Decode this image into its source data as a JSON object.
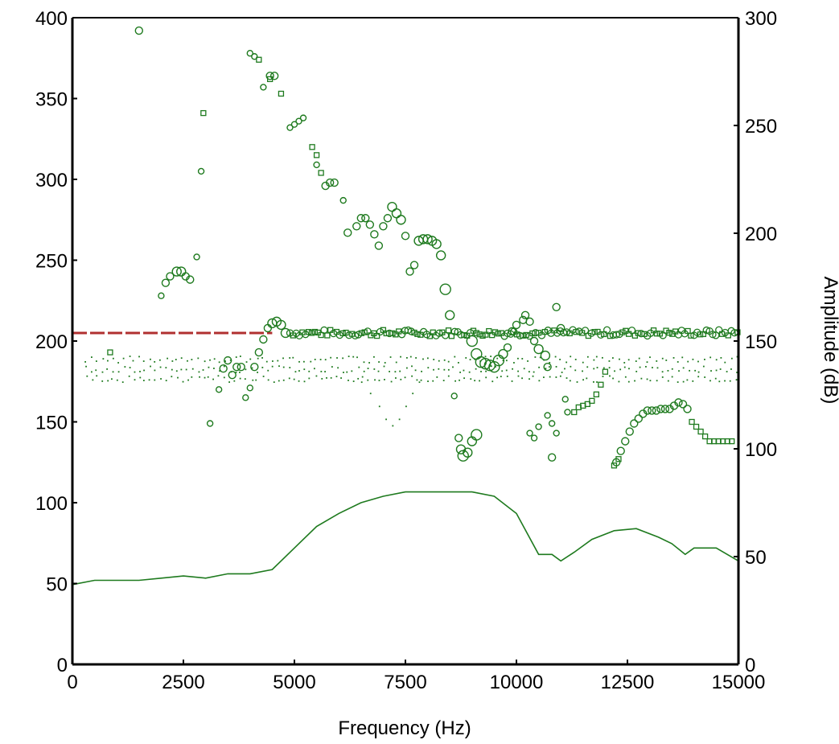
{
  "chart_data": {
    "type": "scatter",
    "xlabel": "Frequency (Hz)",
    "ylabel_right": "Amplitude (dB)",
    "xlim": [
      0,
      15000
    ],
    "ylim_left": [
      0,
      400
    ],
    "ylim_right": [
      0,
      300
    ],
    "x_ticks": [
      "0",
      "2500",
      "5000",
      "7500",
      "10000",
      "12500",
      "15000"
    ],
    "y_left_ticks": [
      "0",
      "50",
      "100",
      "150",
      "200",
      "250",
      "300",
      "350",
      "400"
    ],
    "y_right_ticks": [
      "0",
      "50",
      "100",
      "150",
      "200",
      "250",
      "300"
    ],
    "grid": false,
    "colors": {
      "series": "#1e7a1e",
      "reference": "#b03030",
      "axis": "#000000"
    },
    "series": [
      {
        "kind": "reference-line",
        "axis": "left",
        "x": [
          0,
          4500
        ],
        "y": [
          205,
          205
        ]
      },
      {
        "kind": "spectrum-line",
        "axis": "right",
        "x": [
          0,
          500,
          1000,
          1500,
          2000,
          2500,
          3000,
          3500,
          4000,
          4500,
          5000,
          5500,
          6000,
          6500,
          7000,
          7500,
          8000,
          8500,
          9000,
          9500,
          10000,
          10500,
          10800,
          11000,
          11300,
          11700,
          12200,
          12700,
          13200,
          13500,
          13800,
          14000,
          14500,
          15000
        ],
        "y": [
          37,
          39,
          39,
          39,
          40,
          41,
          40,
          42,
          42,
          44,
          54,
          64,
          70,
          75,
          78,
          80,
          80,
          80,
          80,
          78,
          70,
          51,
          51,
          48,
          52,
          58,
          62,
          63,
          59,
          56,
          51,
          54,
          54,
          48
        ]
      },
      {
        "kind": "scatter-circles",
        "axis": "left",
        "points": [
          [
            1500,
            392,
            3
          ],
          [
            2000,
            228,
            2
          ],
          [
            2100,
            236,
            3
          ],
          [
            2200,
            240,
            3
          ],
          [
            2350,
            243,
            4
          ],
          [
            2450,
            243,
            4
          ],
          [
            2550,
            240,
            3
          ],
          [
            2650,
            238,
            3
          ],
          [
            2800,
            252,
            2
          ],
          [
            2900,
            305,
            2
          ],
          [
            3100,
            149,
            2
          ],
          [
            3300,
            170,
            2
          ],
          [
            3400,
            183,
            3
          ],
          [
            3500,
            188,
            3
          ],
          [
            3600,
            179,
            3
          ],
          [
            3700,
            184,
            3
          ],
          [
            3800,
            184,
            3
          ],
          [
            3900,
            165,
            2
          ],
          [
            4000,
            171,
            2
          ],
          [
            4100,
            184,
            3
          ],
          [
            4200,
            193,
            3
          ],
          [
            4300,
            201,
            3
          ],
          [
            4400,
            208,
            3
          ],
          [
            4500,
            211,
            4
          ],
          [
            4600,
            212,
            4
          ],
          [
            4700,
            210,
            4
          ],
          [
            4800,
            205,
            4
          ],
          [
            4000,
            378,
            2
          ],
          [
            4100,
            376,
            2
          ],
          [
            4300,
            357,
            2
          ],
          [
            4450,
            364,
            3
          ],
          [
            4550,
            364,
            3
          ],
          [
            4900,
            332,
            2
          ],
          [
            5000,
            334,
            2
          ],
          [
            5100,
            336,
            2
          ],
          [
            5200,
            338,
            2
          ],
          [
            5500,
            309,
            2
          ],
          [
            5700,
            296,
            3
          ],
          [
            5800,
            298,
            3
          ],
          [
            5900,
            298,
            3
          ],
          [
            6100,
            287,
            2
          ],
          [
            6200,
            267,
            3
          ],
          [
            6400,
            271,
            3
          ],
          [
            6500,
            276,
            3
          ],
          [
            6600,
            276,
            3
          ],
          [
            6700,
            272,
            3
          ],
          [
            6800,
            266,
            3
          ],
          [
            6900,
            259,
            3
          ],
          [
            7000,
            271,
            3
          ],
          [
            7100,
            276,
            3
          ],
          [
            7200,
            283,
            4
          ],
          [
            7300,
            279,
            4
          ],
          [
            7400,
            275,
            4
          ],
          [
            7500,
            265,
            3
          ],
          [
            7600,
            243,
            3
          ],
          [
            7700,
            247,
            3
          ],
          [
            7800,
            262,
            4
          ],
          [
            7900,
            263,
            4
          ],
          [
            8000,
            263,
            4
          ],
          [
            8100,
            262,
            4
          ],
          [
            8200,
            260,
            4
          ],
          [
            8300,
            253,
            4
          ],
          [
            8400,
            232,
            5
          ],
          [
            8500,
            216,
            4
          ],
          [
            8600,
            166,
            2
          ],
          [
            8700,
            140,
            3
          ],
          [
            8750,
            133,
            4
          ],
          [
            8800,
            129,
            5
          ],
          [
            8900,
            131,
            4
          ],
          [
            9000,
            138,
            4
          ],
          [
            9100,
            142,
            5
          ],
          [
            9000,
            200,
            5
          ],
          [
            9100,
            192,
            5
          ],
          [
            9200,
            187,
            5
          ],
          [
            9300,
            186,
            5
          ],
          [
            9400,
            185,
            5
          ],
          [
            9500,
            184,
            5
          ],
          [
            9600,
            188,
            5
          ],
          [
            9700,
            192,
            4
          ],
          [
            9800,
            196,
            3
          ],
          [
            9900,
            206,
            3
          ],
          [
            10000,
            210,
            3
          ],
          [
            10150,
            213,
            3
          ],
          [
            10200,
            216,
            3
          ],
          [
            10300,
            212,
            3
          ],
          [
            10400,
            200,
            3
          ],
          [
            10500,
            195,
            4
          ],
          [
            10650,
            191,
            4
          ],
          [
            10700,
            184,
            3
          ],
          [
            10800,
            128,
            3
          ],
          [
            10900,
            221,
            3
          ],
          [
            11000,
            208,
            3
          ],
          [
            10300,
            143,
            2
          ],
          [
            10400,
            140,
            2
          ],
          [
            10500,
            147,
            2
          ],
          [
            10700,
            154,
            2
          ],
          [
            10800,
            149,
            2
          ],
          [
            10900,
            143,
            2
          ],
          [
            11100,
            164,
            2
          ],
          [
            11150,
            156,
            2
          ],
          [
            12250,
            125,
            3
          ],
          [
            12350,
            132,
            3
          ],
          [
            12450,
            138,
            3
          ],
          [
            12550,
            144,
            3
          ],
          [
            12650,
            149,
            3
          ],
          [
            12750,
            152,
            3
          ],
          [
            12850,
            155,
            3
          ],
          [
            12950,
            157,
            3
          ],
          [
            13050,
            157,
            3
          ],
          [
            13150,
            157,
            3
          ],
          [
            13250,
            158,
            3
          ],
          [
            13350,
            158,
            3
          ],
          [
            13450,
            158,
            3
          ],
          [
            13550,
            160,
            3
          ],
          [
            13650,
            162,
            3
          ],
          [
            13750,
            161,
            3
          ],
          [
            13850,
            158,
            3
          ]
        ]
      },
      {
        "kind": "scatter-squares",
        "axis": "left",
        "points": [
          [
            850,
            193
          ],
          [
            2950,
            341
          ],
          [
            4200,
            374
          ],
          [
            4450,
            362
          ],
          [
            4700,
            353
          ],
          [
            5400,
            320
          ],
          [
            5500,
            315
          ],
          [
            5600,
            304
          ],
          [
            11300,
            156
          ],
          [
            11400,
            159
          ],
          [
            11500,
            160
          ],
          [
            11600,
            161
          ],
          [
            11700,
            163
          ],
          [
            11800,
            167
          ],
          [
            11900,
            173
          ],
          [
            12000,
            181
          ],
          [
            12200,
            123
          ],
          [
            12300,
            127
          ],
          [
            13950,
            150
          ],
          [
            14050,
            147
          ],
          [
            14150,
            144
          ],
          [
            14250,
            141
          ],
          [
            14350,
            138
          ],
          [
            14450,
            138
          ],
          [
            14550,
            138
          ],
          [
            14650,
            138
          ],
          [
            14750,
            138
          ],
          [
            14850,
            138
          ]
        ]
      },
      {
        "kind": "dense-band",
        "axis": "left",
        "x_start": 4900,
        "x_end": 15000,
        "step": 70,
        "center": 205,
        "spread": 4
      },
      {
        "kind": "dots",
        "axis": "left",
        "x_start": 300,
        "x_end": 15000,
        "step": 120,
        "levels": [
          189,
          183,
          177
        ]
      },
      {
        "kind": "dip-dots",
        "axis": "left",
        "x": [
          6500,
          6700,
          6900,
          7050,
          7200,
          7350,
          7500,
          7650,
          7800
        ],
        "y": [
          175,
          168,
          160,
          152,
          148,
          152,
          160,
          168,
          175
        ]
      }
    ]
  }
}
